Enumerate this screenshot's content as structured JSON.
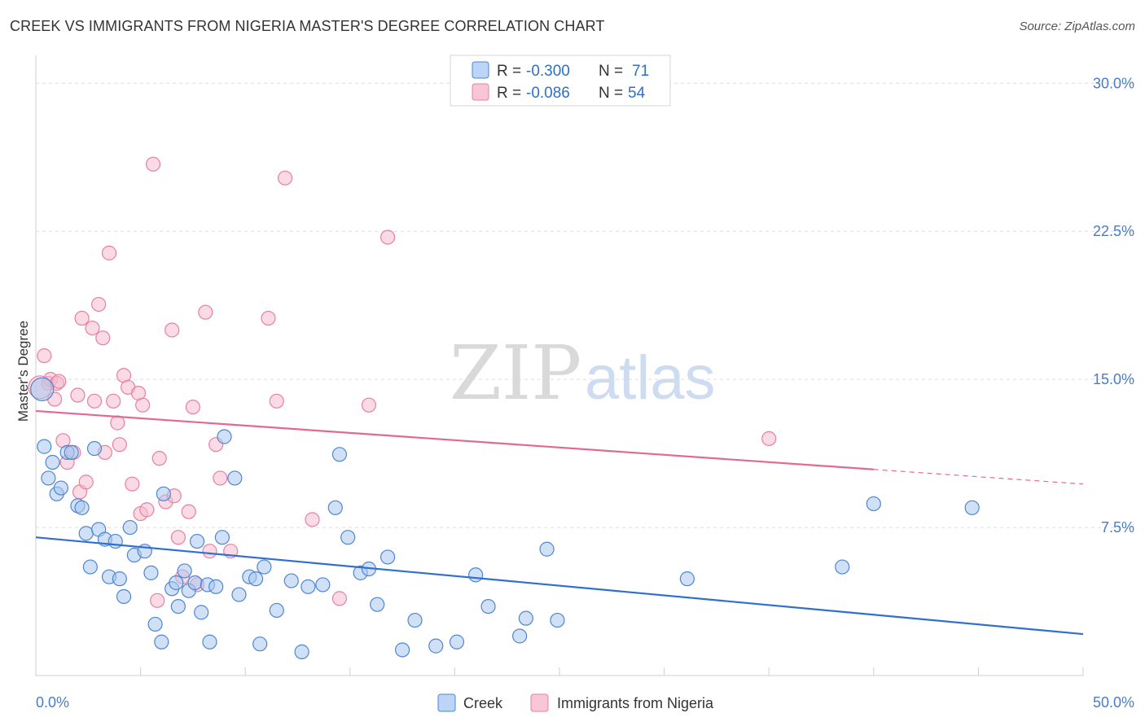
{
  "title": "CREEK VS IMMIGRANTS FROM NIGERIA MASTER'S DEGREE CORRELATION CHART",
  "source": "Source: ZipAtlas.com",
  "watermark": {
    "zip": "ZIP",
    "atlas": "atlas"
  },
  "colors": {
    "creek_fill": "#aac8f0",
    "creek_stroke": "#4f86cf",
    "creek_line": "#2f6fd0",
    "nigeria_fill": "#f6bccd",
    "nigeria_stroke": "#e9809f",
    "nigeria_line": "#e26a90",
    "grid": "#dddddd",
    "tick_label": "#4a7cc7"
  },
  "legend": {
    "rows": [
      {
        "r_label": "R = ",
        "r_value": "-0.300",
        "n_label": "N = ",
        "n_value": "71"
      },
      {
        "r_label": "R = ",
        "r_value": "-0.086",
        "n_label": "N = ",
        "n_value": "54"
      }
    ]
  },
  "chart_data": {
    "type": "scatter",
    "title": "CREEK VS IMMIGRANTS FROM NIGERIA MASTER'S DEGREE CORRELATION CHART",
    "xlabel": "",
    "ylabel": "Master's Degree",
    "xlim": [
      0,
      50
    ],
    "ylim": [
      0,
      31
    ],
    "x_tick_labels": [
      "0.0%",
      "50.0%"
    ],
    "y_ticks": [
      7.5,
      15.0,
      22.5,
      30.0
    ],
    "y_tick_labels": [
      "7.5%",
      "15.0%",
      "22.5%",
      "30.0%"
    ],
    "grid": true,
    "legend_position": "bottom-center",
    "series": [
      {
        "name": "Creek",
        "r": -0.3,
        "n": 71,
        "trend": {
          "x": [
            0,
            50
          ],
          "y": [
            7.0,
            2.1
          ],
          "solid_to": 50
        },
        "points": [
          [
            0.3,
            14.5
          ],
          [
            0.4,
            11.6
          ],
          [
            0.6,
            10.0
          ],
          [
            0.8,
            10.8
          ],
          [
            1.0,
            9.2
          ],
          [
            1.2,
            9.5
          ],
          [
            1.5,
            11.3
          ],
          [
            1.7,
            11.3
          ],
          [
            2.0,
            8.6
          ],
          [
            2.2,
            8.5
          ],
          [
            2.4,
            7.2
          ],
          [
            2.6,
            5.5
          ],
          [
            2.8,
            11.5
          ],
          [
            3.0,
            7.4
          ],
          [
            3.3,
            6.9
          ],
          [
            3.5,
            5.0
          ],
          [
            3.8,
            6.8
          ],
          [
            4.0,
            4.9
          ],
          [
            4.2,
            4.0
          ],
          [
            4.5,
            7.5
          ],
          [
            4.7,
            6.1
          ],
          [
            5.2,
            6.3
          ],
          [
            5.5,
            5.2
          ],
          [
            5.7,
            2.6
          ],
          [
            6.0,
            1.7
          ],
          [
            6.1,
            9.2
          ],
          [
            6.5,
            4.4
          ],
          [
            6.7,
            4.7
          ],
          [
            6.8,
            3.5
          ],
          [
            7.1,
            5.3
          ],
          [
            7.3,
            4.3
          ],
          [
            7.6,
            4.7
          ],
          [
            7.7,
            6.8
          ],
          [
            7.9,
            3.2
          ],
          [
            8.3,
            1.7
          ],
          [
            8.2,
            4.6
          ],
          [
            8.6,
            4.5
          ],
          [
            8.9,
            7.0
          ],
          [
            9.0,
            12.1
          ],
          [
            9.5,
            10.0
          ],
          [
            9.7,
            4.1
          ],
          [
            10.2,
            5.0
          ],
          [
            10.5,
            4.9
          ],
          [
            10.7,
            1.6
          ],
          [
            10.9,
            5.5
          ],
          [
            11.5,
            3.3
          ],
          [
            12.2,
            4.8
          ],
          [
            12.7,
            1.2
          ],
          [
            13.0,
            4.5
          ],
          [
            13.7,
            4.6
          ],
          [
            14.3,
            8.5
          ],
          [
            14.5,
            11.2
          ],
          [
            14.9,
            7.0
          ],
          [
            15.5,
            5.2
          ],
          [
            15.9,
            5.4
          ],
          [
            16.3,
            3.6
          ],
          [
            16.8,
            6.0
          ],
          [
            17.5,
            1.3
          ],
          [
            18.1,
            2.8
          ],
          [
            19.1,
            1.5
          ],
          [
            20.1,
            1.7
          ],
          [
            21.0,
            5.1
          ],
          [
            21.6,
            3.5
          ],
          [
            23.1,
            2.0
          ],
          [
            23.4,
            2.9
          ],
          [
            24.4,
            6.4
          ],
          [
            24.9,
            2.8
          ],
          [
            31.1,
            4.9
          ],
          [
            38.5,
            5.5
          ],
          [
            40.0,
            8.7
          ],
          [
            44.7,
            8.5
          ]
        ]
      },
      {
        "name": "Immigrants from Nigeria",
        "r": -0.086,
        "n": 54,
        "trend": {
          "x": [
            0,
            50
          ],
          "y": [
            13.4,
            9.7
          ],
          "solid_to": 40
        },
        "points": [
          [
            0.4,
            16.2
          ],
          [
            0.6,
            14.8
          ],
          [
            0.7,
            15.0
          ],
          [
            0.9,
            14.0
          ],
          [
            1.0,
            14.8
          ],
          [
            1.3,
            11.9
          ],
          [
            1.5,
            10.8
          ],
          [
            1.8,
            11.3
          ],
          [
            2.0,
            14.2
          ],
          [
            2.1,
            9.3
          ],
          [
            2.2,
            18.1
          ],
          [
            2.4,
            9.8
          ],
          [
            2.7,
            17.6
          ],
          [
            2.8,
            13.9
          ],
          [
            3.0,
            18.8
          ],
          [
            3.2,
            17.1
          ],
          [
            3.3,
            11.3
          ],
          [
            3.5,
            21.4
          ],
          [
            3.7,
            13.9
          ],
          [
            3.9,
            12.8
          ],
          [
            4.0,
            11.7
          ],
          [
            4.2,
            15.2
          ],
          [
            4.4,
            14.6
          ],
          [
            4.6,
            9.7
          ],
          [
            4.9,
            14.3
          ],
          [
            5.0,
            8.2
          ],
          [
            5.1,
            13.7
          ],
          [
            5.3,
            8.4
          ],
          [
            5.6,
            25.9
          ],
          [
            5.8,
            3.8
          ],
          [
            5.9,
            11.0
          ],
          [
            6.2,
            8.8
          ],
          [
            6.5,
            17.5
          ],
          [
            6.6,
            9.1
          ],
          [
            6.8,
            7.0
          ],
          [
            7.0,
            5.0
          ],
          [
            7.3,
            8.3
          ],
          [
            7.5,
            13.6
          ],
          [
            7.7,
            4.6
          ],
          [
            8.1,
            18.4
          ],
          [
            8.3,
            6.3
          ],
          [
            8.6,
            11.7
          ],
          [
            8.8,
            10.0
          ],
          [
            9.3,
            6.3
          ],
          [
            11.1,
            18.1
          ],
          [
            11.5,
            13.9
          ],
          [
            11.9,
            25.2
          ],
          [
            13.2,
            7.9
          ],
          [
            14.5,
            3.9
          ],
          [
            15.9,
            13.7
          ],
          [
            16.8,
            22.2
          ],
          [
            35.0,
            12.0
          ],
          [
            0.2,
            14.6
          ],
          [
            1.1,
            14.9
          ]
        ]
      }
    ]
  },
  "bottom_legend": {
    "items": [
      "Creek",
      "Immigrants from Nigeria"
    ]
  }
}
